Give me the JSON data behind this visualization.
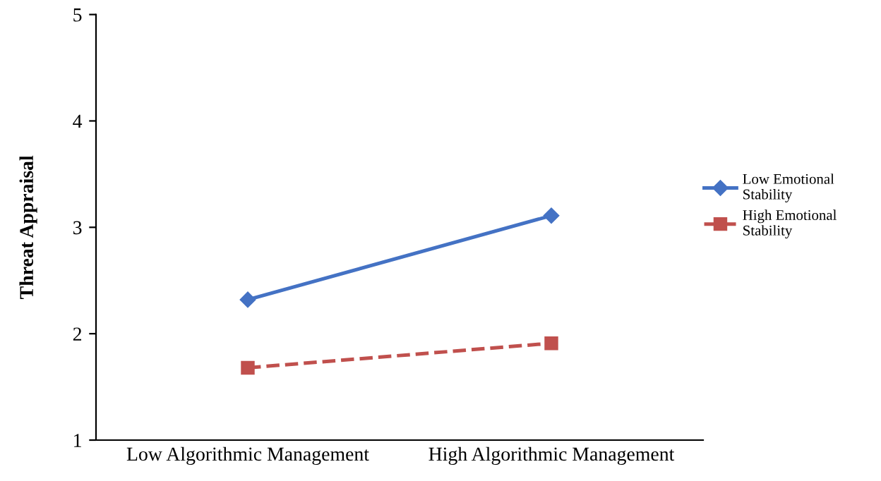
{
  "chart_data": {
    "type": "line",
    "ylabel": "Threat Appraisal",
    "categories": [
      "Low Algorithmic Management",
      "High Algorithmic Management"
    ],
    "series": [
      {
        "name": "Low Emotional Stability",
        "color": "#4472c4",
        "values": [
          2.32,
          3.11
        ],
        "marker": "diamond",
        "line_style": "solid"
      },
      {
        "name": "High Emotional Stability",
        "color": "#c0504d",
        "values": [
          1.68,
          1.91
        ],
        "marker": "square",
        "line_style": "dashed"
      }
    ],
    "ylim": [
      1,
      5
    ],
    "yticks": [
      1,
      2,
      3,
      4,
      5
    ],
    "grid": false,
    "legend": "right"
  }
}
